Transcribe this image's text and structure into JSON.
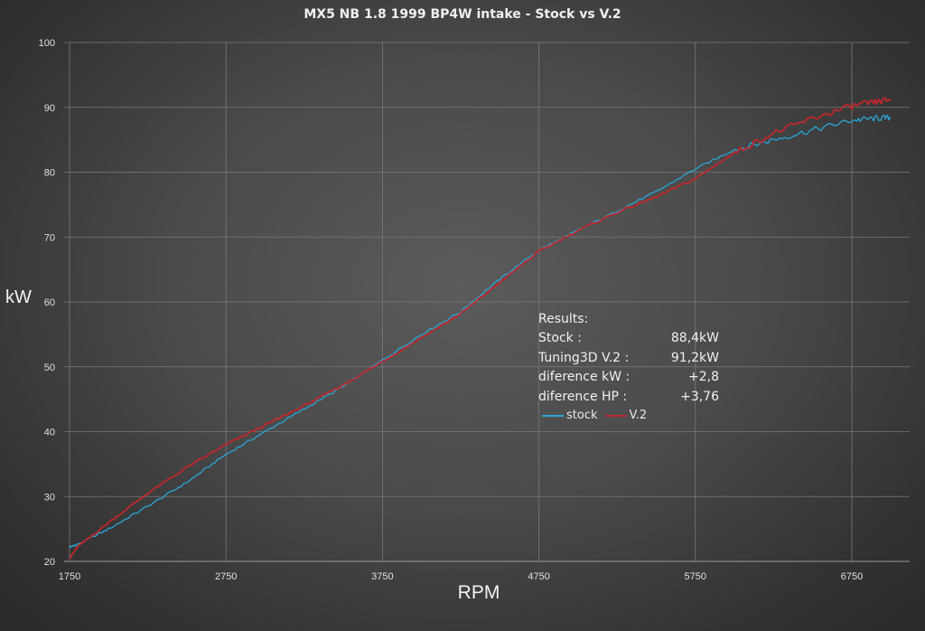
{
  "chart_data": {
    "type": "line",
    "title": "MX5 NB 1.8 1999 BP4W intake - Stock vs V.2",
    "xlabel": "RPM",
    "ylabel": "kW",
    "xlim": [
      1750,
      7000
    ],
    "ylim": [
      20,
      100
    ],
    "xticks": [
      1750,
      2750,
      3750,
      4750,
      5750,
      6750
    ],
    "yticks": [
      20,
      30,
      40,
      50,
      60,
      70,
      80,
      90,
      100
    ],
    "grid": true,
    "series": [
      {
        "name": "stock",
        "color": "#2aa6d6",
        "x": [
          1750,
          1800,
          2000,
          2250,
          2500,
          2750,
          3000,
          3250,
          3500,
          3750,
          4000,
          4250,
          4500,
          4750,
          5000,
          5250,
          5500,
          5750,
          6000,
          6250,
          6500,
          6750,
          6900,
          7000
        ],
        "y": [
          22.2,
          22.6,
          25.0,
          28.5,
          32.2,
          36.5,
          40.0,
          43.5,
          47.0,
          51.0,
          55.0,
          58.5,
          63.5,
          68.0,
          71.0,
          74.0,
          77.0,
          80.5,
          83.5,
          85.0,
          86.5,
          88.0,
          88.3,
          88.4
        ]
      },
      {
        "name": "V.2",
        "color": "#c0282c",
        "x": [
          1750,
          1800,
          2000,
          2250,
          2500,
          2750,
          3000,
          3250,
          3500,
          3750,
          4000,
          4250,
          4500,
          4750,
          5000,
          5250,
          5500,
          5750,
          6000,
          6250,
          6500,
          6750,
          6900,
          7000
        ],
        "y": [
          20.5,
          22.2,
          26.0,
          30.5,
          34.5,
          38.0,
          41.0,
          44.0,
          47.2,
          50.8,
          54.5,
          58.2,
          63.0,
          67.8,
          71.0,
          73.8,
          76.2,
          79.0,
          83.0,
          86.0,
          88.3,
          90.2,
          90.8,
          91.2
        ]
      }
    ]
  },
  "results": {
    "heading": "Results:",
    "rows": [
      {
        "label": "Stock :",
        "value": "88,4kW"
      },
      {
        "label": "Tuning3D V.2 :",
        "value": "91,2kW"
      },
      {
        "label": "diference kW :",
        "value": "+2,8"
      },
      {
        "label": "diference HP :",
        "value": "+3,76"
      }
    ]
  },
  "legend": {
    "stock_label": "stock",
    "v2_label": "V.2"
  },
  "colors": {
    "stock": "#2aa6d6",
    "v2": "#c0282c",
    "grid": "#7a7a7a"
  }
}
